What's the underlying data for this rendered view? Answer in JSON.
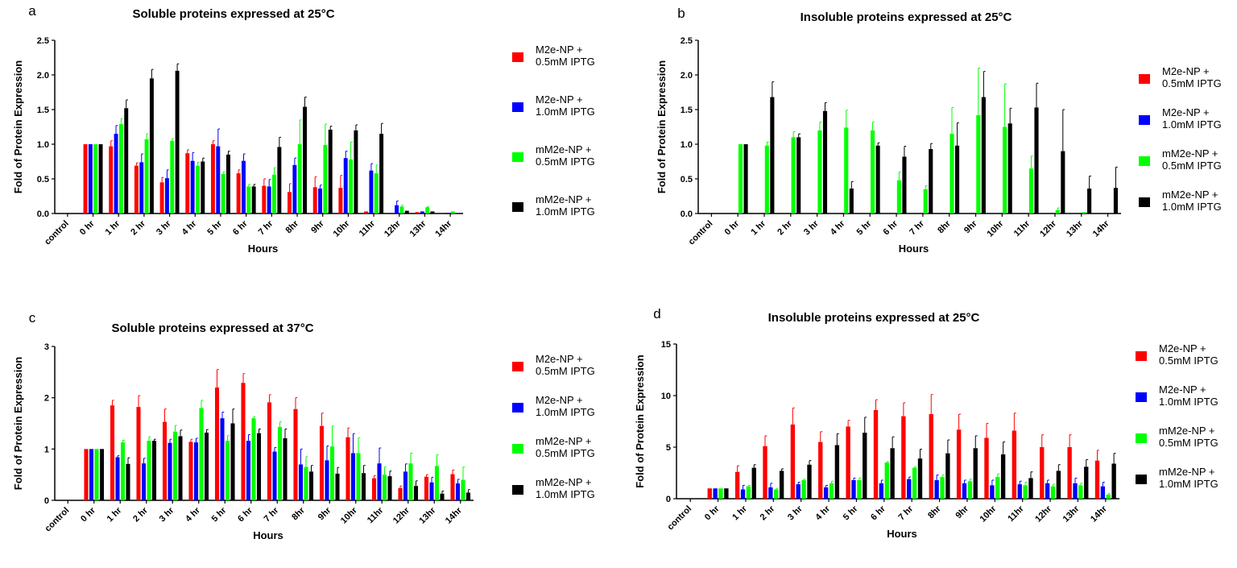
{
  "categories": [
    "control",
    "0 hr",
    "1 hr",
    "2 hr",
    "3 hr",
    "4 hr",
    "5 hr",
    "6 hr",
    "7 hr",
    "8hr",
    "9hr",
    "10hr",
    "11hr",
    "12hr",
    "13hr",
    "14hr"
  ],
  "series_names": [
    "M2e-NP + 0.5mM IPTG",
    "M2e-NP + 1.0mM IPTG",
    "mM2e-NP + 0.5mM IPTG",
    "mM2e-NP + 1.0mM IPTG"
  ],
  "legend_lines": [
    [
      "M2e-NP +",
      "0.5mM IPTG"
    ],
    [
      "M2e-NP +",
      "1.0mM IPTG"
    ],
    [
      "mM2e-NP +",
      "0.5mM IPTG"
    ],
    [
      "mM2e-NP +",
      "1.0mM IPTG"
    ]
  ],
  "colors": [
    "#ff0000",
    "#0000ff",
    "#00ff00",
    "#000000"
  ],
  "chart_data": [
    {
      "type": "bar",
      "panel": "a",
      "title": "Soluble proteins expressed at 25°C",
      "xlabel": "Hours",
      "ylabel": "Fold of Protein Expression",
      "ylim": [
        0,
        2.5
      ],
      "yticks": [
        0,
        0.5,
        1.0,
        1.5,
        2.0,
        2.5
      ],
      "ytick_labels": [
        "0.0",
        "0.5",
        "1.0",
        "1.5",
        "2.0",
        "2.5"
      ],
      "series": [
        {
          "name": "M2e-NP + 0.5mM IPTG",
          "values": [
            0,
            1.0,
            0.97,
            0.69,
            0.45,
            0.87,
            1.0,
            0.58,
            0.4,
            0.31,
            0.38,
            0.37,
            0.03,
            0,
            0.02,
            0
          ],
          "errors": [
            0,
            0,
            0.08,
            0.04,
            0.07,
            0.05,
            0.05,
            0.05,
            0.1,
            0.12,
            0.15,
            0.18,
            0,
            0,
            0,
            0
          ]
        },
        {
          "name": "M2e-NP + 1.0mM IPTG",
          "values": [
            0,
            1.0,
            1.15,
            0.74,
            0.51,
            0.76,
            0.97,
            0.76,
            0.39,
            0.7,
            0.36,
            0.8,
            0.62,
            0.12,
            0.03,
            0.01
          ],
          "errors": [
            0,
            0,
            0.12,
            0.12,
            0.12,
            0.12,
            0.25,
            0.1,
            0.1,
            0.1,
            0.05,
            0.1,
            0.1,
            0.06,
            0,
            0
          ]
        },
        {
          "name": "mM2e-NP + 0.5mM IPTG",
          "values": [
            0,
            1.0,
            1.29,
            1.07,
            1.05,
            0.69,
            0.57,
            0.39,
            0.56,
            1.0,
            0.99,
            0.78,
            0.58,
            0.1,
            0.09,
            0.03
          ],
          "errors": [
            0,
            0,
            0.08,
            0.08,
            0.03,
            0.05,
            0.03,
            0.03,
            0.1,
            0.35,
            0.3,
            0.25,
            0.12,
            0.02,
            0.01,
            0
          ]
        },
        {
          "name": "mM2e-NP + 1.0mM IPTG",
          "values": [
            0,
            1.0,
            1.52,
            1.95,
            2.06,
            0.75,
            0.85,
            0.39,
            0.96,
            1.54,
            1.21,
            1.2,
            1.15,
            0.04,
            0.03,
            0
          ],
          "errors": [
            0,
            0,
            0.12,
            0.13,
            0.1,
            0.05,
            0.05,
            0.03,
            0.14,
            0.14,
            0.05,
            0.08,
            0.15,
            0,
            0,
            0
          ]
        }
      ]
    },
    {
      "type": "bar",
      "panel": "b",
      "title": "Insoluble proteins expressed at 25°C",
      "xlabel": "Hours",
      "ylabel": "Fold of Protein Expression",
      "ylim": [
        0,
        2.5
      ],
      "yticks": [
        0,
        0.5,
        1.0,
        1.5,
        2.0,
        2.5
      ],
      "ytick_labels": [
        "0.0",
        "0.5",
        "1.0",
        "1.5",
        "2.0",
        "2.5"
      ],
      "series": [
        {
          "name": "M2e-NP + 0.5mM IPTG",
          "values": [
            0,
            0,
            0,
            0,
            0,
            0,
            0,
            0,
            0,
            0,
            0,
            0,
            0,
            0,
            0,
            0
          ],
          "errors": [
            0,
            0,
            0,
            0,
            0,
            0,
            0,
            0,
            0,
            0,
            0,
            0,
            0,
            0,
            0,
            0
          ]
        },
        {
          "name": "M2e-NP + 1.0mM IPTG",
          "values": [
            0,
            0,
            0,
            0,
            0,
            0,
            0,
            0,
            0,
            0,
            0,
            0,
            0,
            0,
            0,
            0
          ],
          "errors": [
            0,
            0,
            0,
            0,
            0,
            0,
            0,
            0,
            0,
            0,
            0,
            0,
            0,
            0,
            0,
            0
          ]
        },
        {
          "name": "mM2e-NP + 0.5mM IPTG",
          "values": [
            0,
            1.0,
            0.98,
            1.1,
            1.2,
            1.24,
            1.2,
            0.48,
            0.35,
            1.15,
            1.42,
            1.25,
            0.65,
            0.05,
            0.02,
            0
          ],
          "errors": [
            0,
            0,
            0.05,
            0.08,
            0.12,
            0.25,
            0.12,
            0.12,
            0.05,
            0.38,
            0.68,
            0.62,
            0.18,
            0.03,
            0,
            0
          ]
        },
        {
          "name": "mM2e-NP + 1.0mM IPTG",
          "values": [
            0,
            1.0,
            1.68,
            1.1,
            1.48,
            0.36,
            0.98,
            0.82,
            0.93,
            0.98,
            1.68,
            1.3,
            1.53,
            0.9,
            0.36,
            0.37
          ],
          "errors": [
            0,
            0,
            0.22,
            0.05,
            0.12,
            0.1,
            0.04,
            0.15,
            0.08,
            0.33,
            0.37,
            0.22,
            0.35,
            0.6,
            0.18,
            0.3
          ]
        }
      ]
    },
    {
      "type": "bar",
      "panel": "c",
      "title": "Soluble proteins expressed at 37°C",
      "xlabel": "Hours",
      "ylabel": "Fold of Protein Expression",
      "ylim": [
        0,
        3
      ],
      "yticks": [
        0,
        1,
        2,
        3
      ],
      "ytick_labels": [
        "0",
        "1",
        "2",
        "3"
      ],
      "series": [
        {
          "name": "M2e-NP + 0.5mM IPTG",
          "values": [
            0,
            1.0,
            1.85,
            1.82,
            1.53,
            1.14,
            2.2,
            2.29,
            1.91,
            1.78,
            1.45,
            1.23,
            0.43,
            0.24,
            0.46,
            0.51
          ],
          "errors": [
            0,
            0,
            0.1,
            0.22,
            0.25,
            0.05,
            0.35,
            0.18,
            0.15,
            0.22,
            0.25,
            0.18,
            0.05,
            0.04,
            0.04,
            0.08
          ]
        },
        {
          "name": "M2e-NP + 1.0mM IPTG",
          "values": [
            0,
            1.0,
            0.84,
            0.72,
            1.12,
            1.13,
            1.6,
            1.16,
            0.95,
            0.7,
            0.78,
            0.92,
            0.72,
            0.56,
            0.35,
            0.33
          ],
          "errors": [
            0,
            0,
            0.03,
            0.1,
            0.07,
            0.08,
            0.12,
            0.12,
            0.08,
            0.3,
            0.28,
            0.38,
            0.3,
            0.15,
            0.1,
            0.08
          ]
        },
        {
          "name": "mM2e-NP + 0.5mM IPTG",
          "values": [
            0,
            1.0,
            1.13,
            1.16,
            1.34,
            1.8,
            1.16,
            1.6,
            1.43,
            0.65,
            1.05,
            0.92,
            0.5,
            0.72,
            0.67,
            0.4
          ],
          "errors": [
            0,
            0,
            0.04,
            0.08,
            0.12,
            0.15,
            0.1,
            0.03,
            0.1,
            0.2,
            0.4,
            0.3,
            0.15,
            0.2,
            0.22,
            0.25
          ]
        },
        {
          "name": "mM2e-NP + 1.0mM IPTG",
          "values": [
            0,
            1.0,
            0.71,
            1.16,
            1.25,
            1.32,
            1.5,
            1.31,
            1.21,
            0.56,
            0.52,
            0.53,
            0.47,
            0.28,
            0.13,
            0.15
          ],
          "errors": [
            0,
            0,
            0.12,
            0.03,
            0.12,
            0.06,
            0.28,
            0.08,
            0.18,
            0.12,
            0.12,
            0.15,
            0.1,
            0.1,
            0.05,
            0.06
          ]
        }
      ]
    },
    {
      "type": "bar",
      "panel": "d",
      "title": "Insoluble proteins expressed at 25°C",
      "xlabel": "Hours",
      "ylabel": "Fold of Protein Expression",
      "ylim": [
        0,
        15
      ],
      "yticks": [
        0,
        5,
        10,
        15
      ],
      "ytick_labels": [
        "0",
        "5",
        "10",
        "15"
      ],
      "series": [
        {
          "name": "M2e-NP + 0.5mM IPTG",
          "values": [
            0,
            1.0,
            2.6,
            5.1,
            7.2,
            5.5,
            7.0,
            8.6,
            8.0,
            8.2,
            6.7,
            5.9,
            6.6,
            5.0,
            5.0,
            3.7
          ],
          "errors": [
            0,
            0,
            0.6,
            1.0,
            1.6,
            1.0,
            0.6,
            1.0,
            1.3,
            1.9,
            1.5,
            1.4,
            1.7,
            1.2,
            1.2,
            1.0
          ]
        },
        {
          "name": "M2e-NP + 1.0mM IPTG",
          "values": [
            0,
            1.0,
            0.9,
            1.1,
            1.4,
            1.1,
            1.8,
            1.5,
            1.9,
            1.8,
            1.5,
            1.3,
            1.4,
            1.5,
            1.5,
            1.2
          ],
          "errors": [
            0,
            0,
            0.4,
            0.4,
            0.2,
            0.2,
            0.2,
            0.3,
            0.2,
            0.5,
            0.3,
            0.5,
            0.3,
            0.3,
            0.5,
            0.4
          ]
        },
        {
          "name": "mM2e-NP + 0.5mM IPTG",
          "values": [
            0,
            1.0,
            1.2,
            0.9,
            1.8,
            1.5,
            1.8,
            3.5,
            3.0,
            2.1,
            1.7,
            2.1,
            1.3,
            1.2,
            1.3,
            0.4
          ],
          "errors": [
            0,
            0,
            0.1,
            0.1,
            0.1,
            0.2,
            0.2,
            0.1,
            0.1,
            0.2,
            0.2,
            0.3,
            0.3,
            0.2,
            0.2,
            0.1
          ]
        },
        {
          "name": "mM2e-NP + 1.0mM IPTG",
          "values": [
            0,
            1.0,
            3.0,
            2.7,
            3.3,
            5.2,
            6.4,
            4.9,
            3.9,
            4.4,
            4.9,
            4.3,
            2.0,
            2.7,
            3.1,
            3.4
          ],
          "errors": [
            0,
            0,
            0.3,
            0.2,
            0.4,
            1.1,
            1.5,
            1.1,
            0.9,
            1.3,
            1.2,
            1.2,
            0.6,
            0.6,
            0.7,
            1.0
          ]
        }
      ]
    }
  ]
}
